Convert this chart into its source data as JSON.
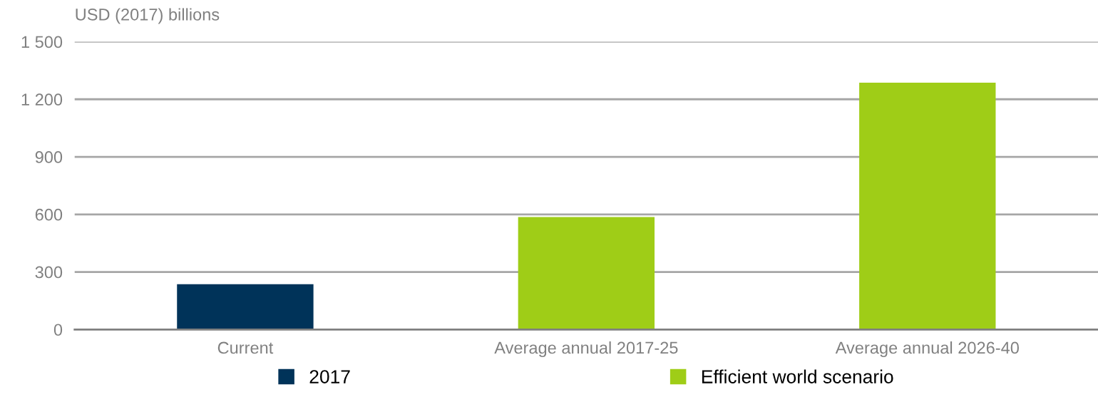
{
  "chart_data": {
    "type": "bar",
    "ylabel": "USD (2017) billions",
    "categories": [
      "Current",
      "Average annual 2017-25",
      "Average annual 2026-40"
    ],
    "series": [
      {
        "name": "2017",
        "color": "#003359",
        "values": [
          236,
          null,
          null
        ]
      },
      {
        "name": "Efficient world scenario",
        "color": "#9fcd17",
        "values": [
          null,
          586,
          1286
        ]
      }
    ],
    "ylim": [
      0,
      1500
    ],
    "yticks": [
      0,
      300,
      600,
      900,
      {
        "value": 1200,
        "label": "1 200"
      },
      {
        "value": 1500,
        "label": "1 500"
      }
    ],
    "grid": "y",
    "legend": "bottom"
  }
}
